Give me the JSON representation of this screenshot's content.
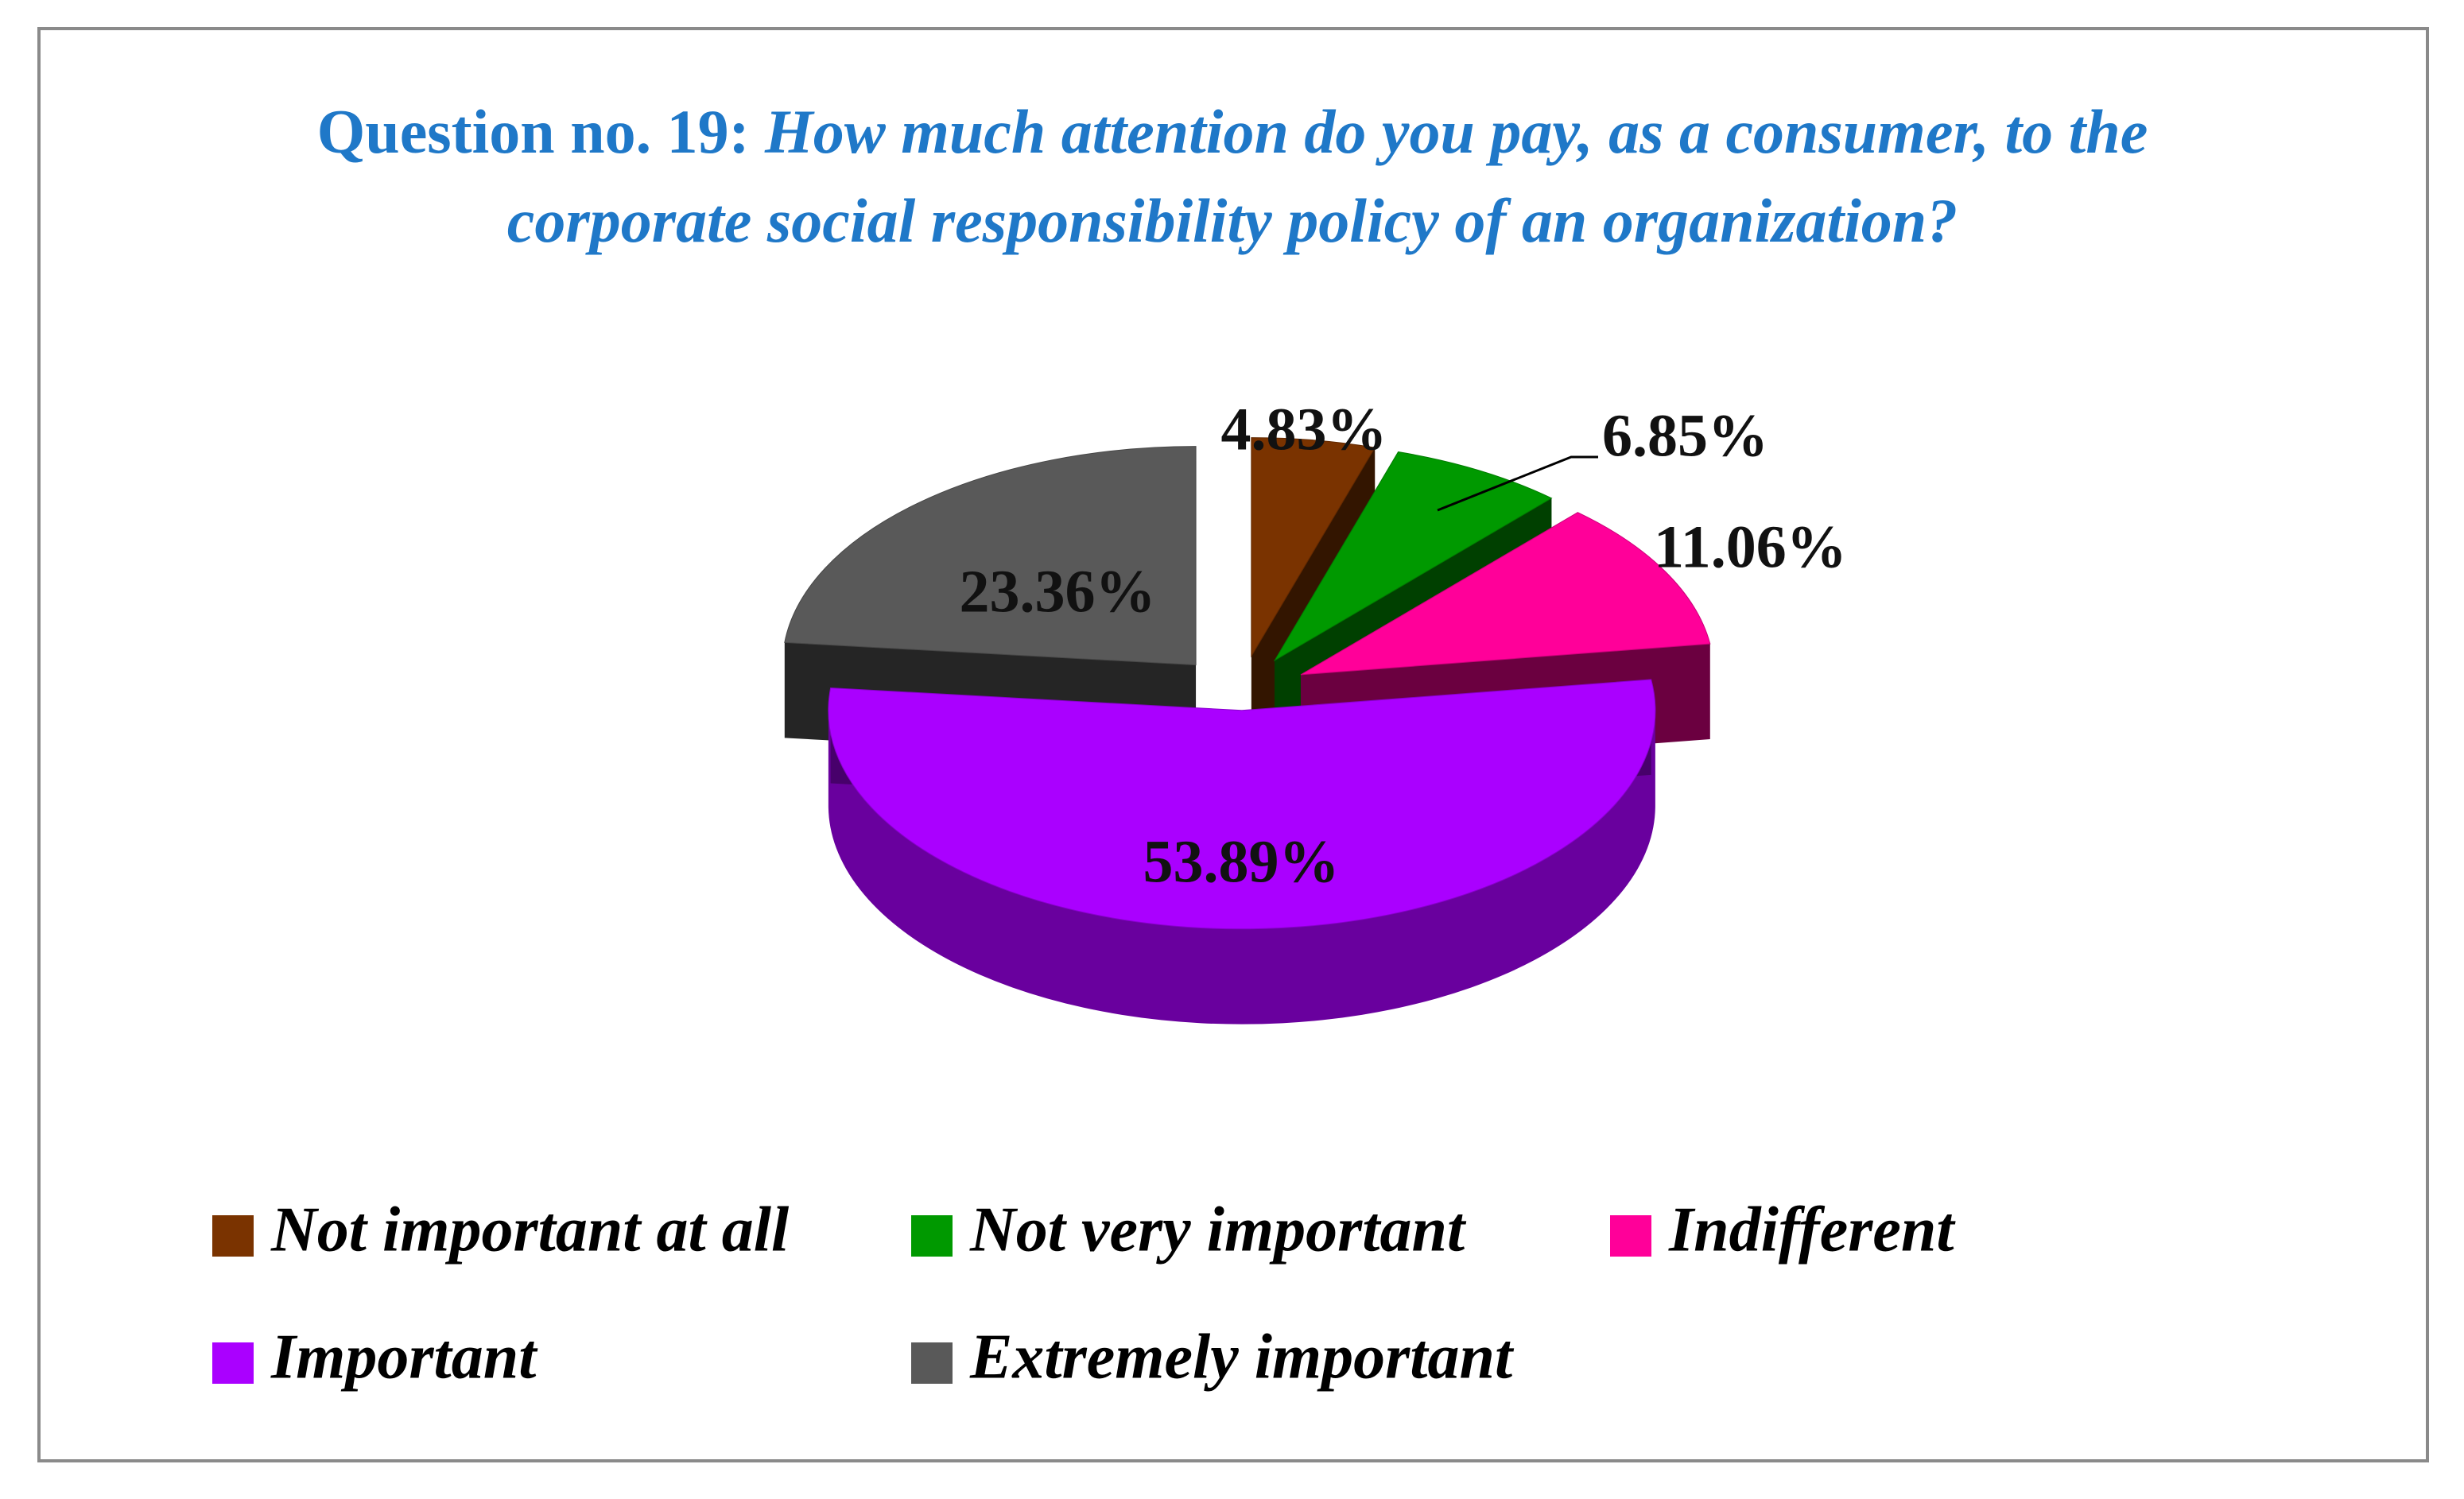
{
  "chart_data": {
    "type": "pie3d",
    "title_prefix": "Question no. 19:",
    "title": "How much attention do you pay, as a consumer, to the corporate social responsibility policy of an organization?",
    "categories": [
      "Not important at all",
      "Not very important",
      "Indifferent",
      "Important",
      "Extremely important"
    ],
    "values": [
      4.83,
      6.85,
      11.06,
      53.89,
      23.36
    ],
    "value_labels": [
      "4.83%",
      "6.85%",
      "11.06%",
      "53.89%",
      "23.36%"
    ],
    "colors": [
      "#7a3300",
      "#009900",
      "#ff0099",
      "#aa00ff",
      "#595959"
    ],
    "legend": "bottom"
  }
}
